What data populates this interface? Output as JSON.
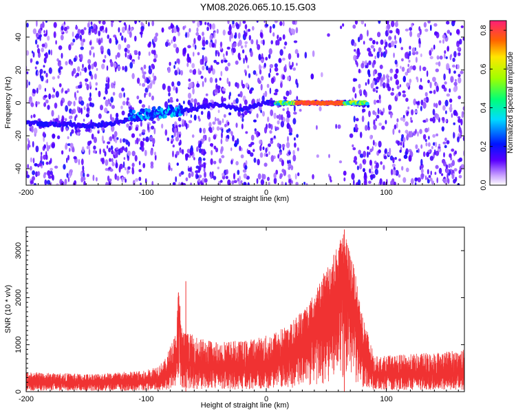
{
  "title": "YM08.2026.065.10.15.G03",
  "chart_data": [
    {
      "type": "heatmap",
      "xlabel": "Height of straight line (km)",
      "ylabel": "Frequency (Hz)",
      "xlim": [
        -200,
        165
      ],
      "ylim": [
        -50,
        50
      ],
      "xticks": [
        -200,
        -100,
        0,
        100
      ],
      "yticks": [
        -40,
        -20,
        0,
        20,
        40
      ],
      "colorbar": {
        "label": "Normalized spectral amplitude",
        "range": [
          0.0,
          0.85
        ],
        "ticks": [
          "0.0",
          "0.2",
          "0.4",
          "0.6",
          "0.8"
        ],
        "tick_values": [
          0.0,
          0.2,
          0.4,
          0.6,
          0.8
        ]
      },
      "ridge_track": [
        {
          "x": -200,
          "y": -12
        },
        {
          "x": -185,
          "y": -13
        },
        {
          "x": -170,
          "y": -13
        },
        {
          "x": -150,
          "y": -14
        },
        {
          "x": -130,
          "y": -13
        },
        {
          "x": -115,
          "y": -10
        },
        {
          "x": -100,
          "y": -9
        },
        {
          "x": -85,
          "y": -6
        },
        {
          "x": -75,
          "y": -5
        },
        {
          "x": -60,
          "y": -4
        },
        {
          "x": -50,
          "y": -2
        },
        {
          "x": -40,
          "y": -1
        },
        {
          "x": -30,
          "y": -3
        },
        {
          "x": -20,
          "y": -4
        },
        {
          "x": -10,
          "y": -2
        },
        {
          "x": 0,
          "y": 0
        },
        {
          "x": 20,
          "y": 0
        },
        {
          "x": 50,
          "y": 0
        },
        {
          "x": 70,
          "y": 0
        },
        {
          "x": 85,
          "y": -1
        }
      ],
      "bright_segments": [
        {
          "x_start": 8,
          "x_end": 84,
          "y": 0,
          "peak_amplitude": 0.82,
          "peak_x_start": 25,
          "peak_x_end": 65
        },
        {
          "x_start": -114,
          "x_end": -70,
          "y": -8,
          "peak_amplitude": 0.45
        },
        {
          "x_start": -190,
          "x_end": -183,
          "y": -13,
          "peak_amplitude": 0.25
        }
      ],
      "empty_bands": [
        {
          "x_start": -92,
          "x_end": -82
        },
        {
          "x_start": 27,
          "x_end": 72
        }
      ]
    },
    {
      "type": "area",
      "xlabel": "Height of straight line (km)",
      "ylabel": "SNR (10 * v/v)",
      "xlim": [
        -200,
        165
      ],
      "ylim": [
        0,
        3500
      ],
      "xticks": [
        -200,
        -100,
        0,
        100
      ],
      "yticks": [
        0,
        1000,
        2000,
        3000
      ],
      "color": "#f03232",
      "envelope": [
        {
          "x": -200,
          "base": 200,
          "spread": 220
        },
        {
          "x": -150,
          "base": 180,
          "spread": 200
        },
        {
          "x": -100,
          "base": 200,
          "spread": 250
        },
        {
          "x": -85,
          "base": 300,
          "spread": 350
        },
        {
          "x": -75,
          "base": 600,
          "spread": 700
        },
        {
          "x": -73,
          "base": 1600,
          "spread": 700
        },
        {
          "x": -70,
          "base": 700,
          "spread": 600
        },
        {
          "x": -50,
          "base": 500,
          "spread": 600
        },
        {
          "x": -20,
          "base": 480,
          "spread": 600
        },
        {
          "x": 0,
          "base": 550,
          "spread": 650
        },
        {
          "x": 20,
          "base": 750,
          "spread": 700
        },
        {
          "x": 40,
          "base": 1300,
          "spread": 800
        },
        {
          "x": 55,
          "base": 2000,
          "spread": 900
        },
        {
          "x": 65,
          "base": 2600,
          "spread": 800
        },
        {
          "x": 72,
          "base": 2000,
          "spread": 800
        },
        {
          "x": 80,
          "base": 1000,
          "spread": 700
        },
        {
          "x": 90,
          "base": 350,
          "spread": 400
        },
        {
          "x": 120,
          "base": 350,
          "spread": 450
        },
        {
          "x": 165,
          "base": 400,
          "spread": 500
        }
      ],
      "peaks": [
        {
          "x": 65,
          "y": 3450
        },
        {
          "x": -67,
          "y": 2350
        }
      ]
    }
  ]
}
